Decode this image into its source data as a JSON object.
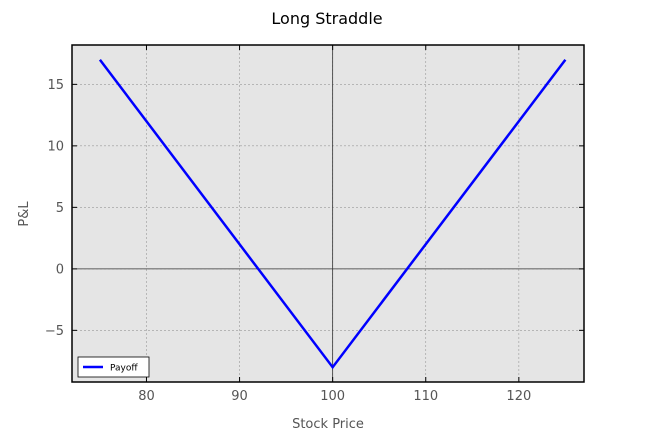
{
  "chart_data": {
    "type": "line",
    "title": "Long Straddle",
    "xlabel": "Stock Price",
    "ylabel": "P&L",
    "xlim": [
      72,
      127
    ],
    "ylim": [
      -9.2,
      18.2
    ],
    "xticks": [
      80,
      90,
      100,
      110,
      120
    ],
    "yticks": [
      -5,
      0,
      5,
      10,
      15
    ],
    "ytick_labels": [
      "−5",
      "0",
      "5",
      "10",
      "15"
    ],
    "grid": true,
    "background": "#e5e5e5",
    "reference_lines": {
      "x": 100,
      "y": 0
    },
    "legend_position": "lower-left",
    "series": [
      {
        "name": "Payoff",
        "color": "#0000ff",
        "x": [
          75,
          100,
          125
        ],
        "y": [
          17,
          -8,
          17
        ]
      }
    ]
  }
}
